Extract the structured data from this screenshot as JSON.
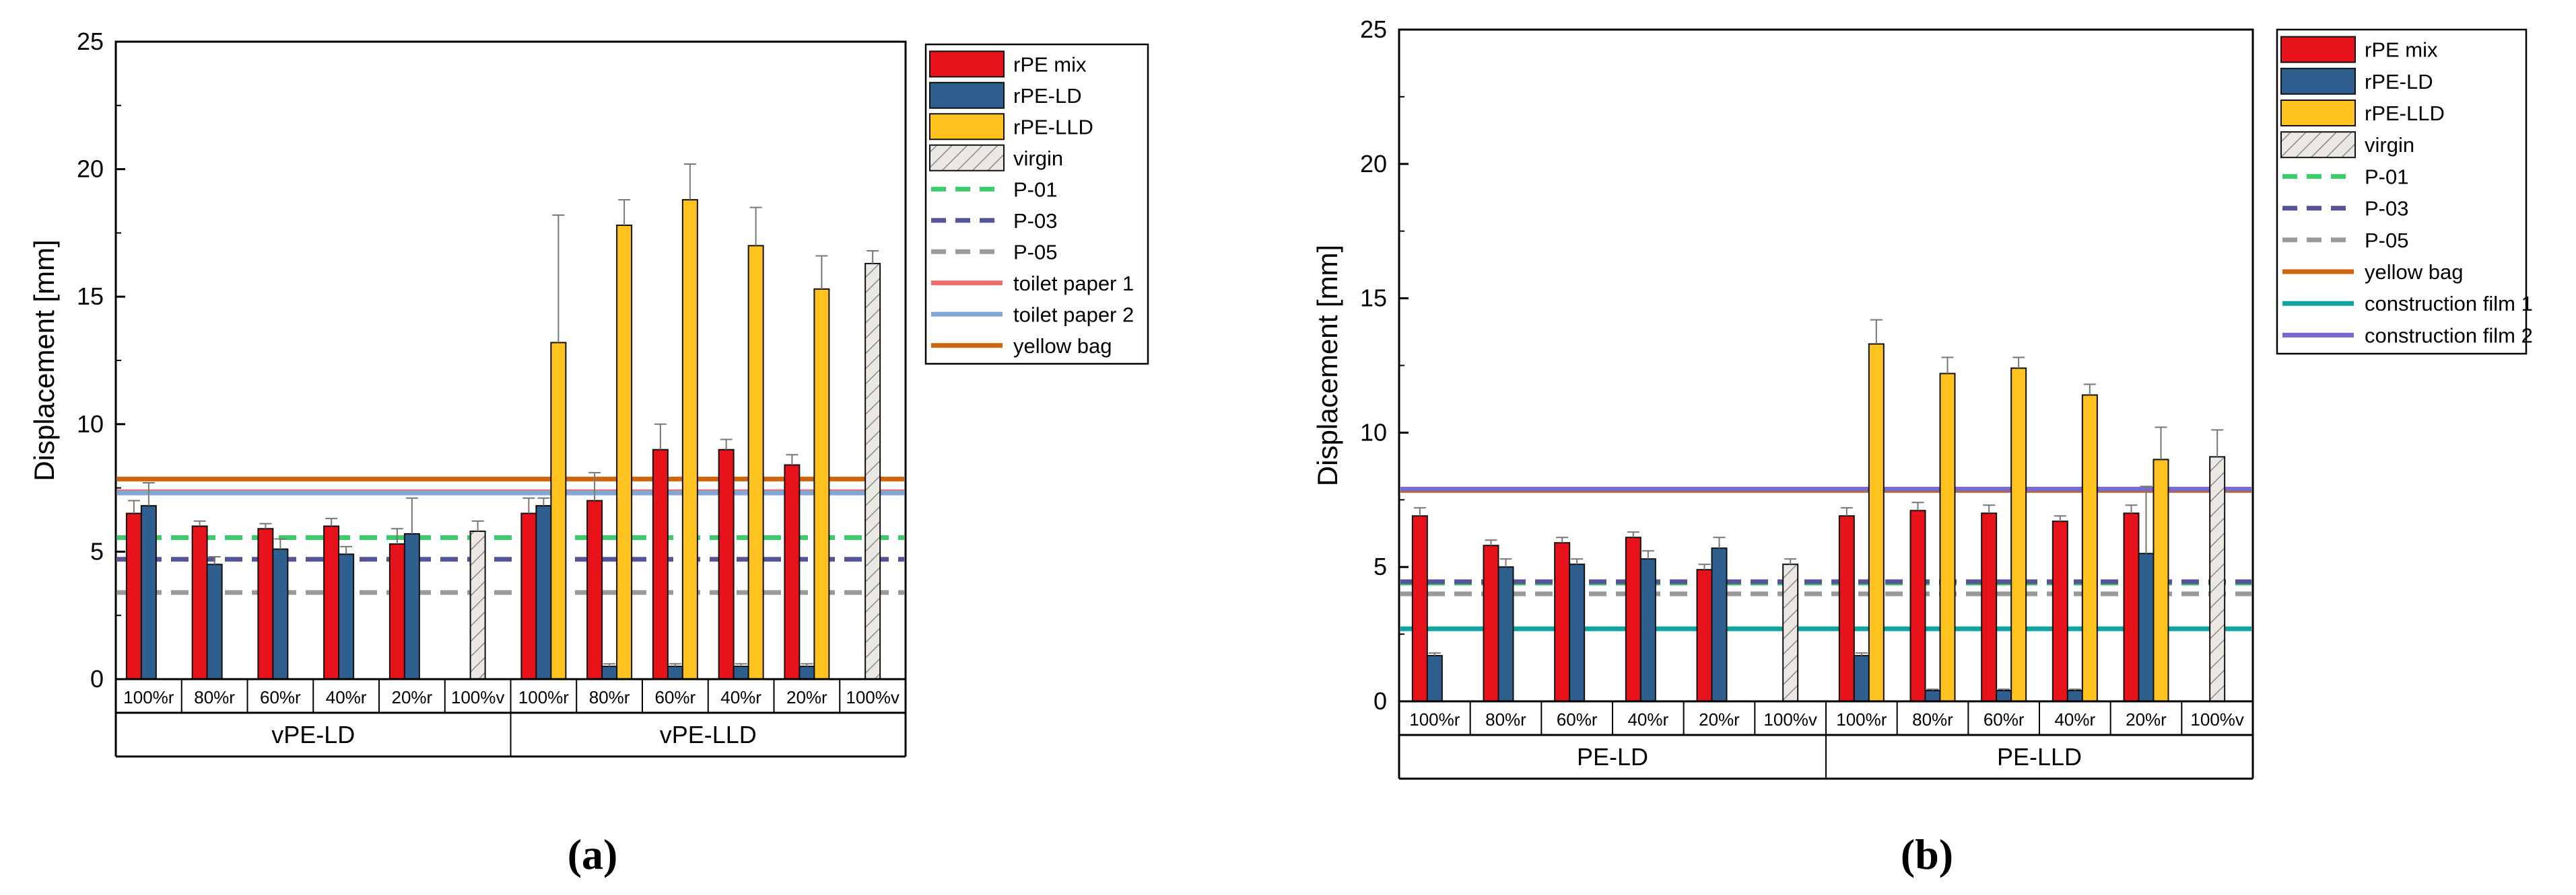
{
  "colors": {
    "rpe_mix": "#e8121a",
    "rpe_ld": "#2f5f8f",
    "rpe_lld": "#ffc21e",
    "virgin": "#e9e5e1",
    "p01": "#3ccc6a",
    "p03": "#55559a",
    "p05": "#9a9a9a",
    "toilet1": "#f06b6b",
    "toilet2": "#7fa8d8",
    "yellow_bag": "#d0650f",
    "construction1": "#10a5a0",
    "construction2": "#7a6ad0"
  },
  "chart_data": [
    {
      "type": "bar",
      "panel_label": "(a)",
      "ylabel": "Displacement [mm]",
      "ylim": [
        0,
        25
      ],
      "yticks": [
        "0",
        "5",
        "10",
        "15",
        "20",
        "25"
      ],
      "groups": [
        {
          "label": "vPE-LD",
          "subcategories": [
            "100%r",
            "80%r",
            "60%r",
            "40%r",
            "20%r",
            "100%v"
          ]
        },
        {
          "label": "vPE-LLD",
          "subcategories": [
            "100%r",
            "80%r",
            "60%r",
            "40%r",
            "20%r",
            "100%v"
          ]
        }
      ],
      "series": [
        {
          "name": "rPE mix",
          "color_key": "rpe_mix",
          "values": [
            6.5,
            6.0,
            5.9,
            6.0,
            5.3,
            null,
            6.5,
            7.0,
            9.0,
            9.0,
            8.4,
            null
          ],
          "errors": [
            0.5,
            0.2,
            0.2,
            0.3,
            0.6,
            null,
            0.6,
            1.1,
            1.0,
            0.4,
            0.4,
            null
          ]
        },
        {
          "name": "rPE-LD",
          "color_key": "rpe_ld",
          "values": [
            6.8,
            4.5,
            5.1,
            4.9,
            5.7,
            null,
            6.8,
            0.5,
            0.5,
            0.5,
            0.5,
            null
          ],
          "errors": [
            0.9,
            0.3,
            0.4,
            0.3,
            1.4,
            null,
            0.3,
            0.1,
            0.1,
            0.1,
            0.1,
            null
          ]
        },
        {
          "name": "rPE-LLD",
          "color_key": "rpe_lld",
          "values": [
            null,
            null,
            null,
            null,
            null,
            null,
            13.2,
            17.8,
            18.8,
            17.0,
            15.3,
            null
          ],
          "errors": [
            null,
            null,
            null,
            null,
            null,
            null,
            5.0,
            1.0,
            1.4,
            1.5,
            1.3,
            null
          ]
        },
        {
          "name": "virgin",
          "color_key": "virgin",
          "hatched": true,
          "values": [
            null,
            null,
            null,
            null,
            null,
            5.8,
            null,
            null,
            null,
            null,
            null,
            16.3
          ],
          "errors": [
            null,
            null,
            null,
            null,
            null,
            0.4,
            null,
            null,
            null,
            null,
            null,
            0.5
          ]
        }
      ],
      "reference_lines": [
        {
          "name": "P-01",
          "value": 5.55,
          "style": "dashed",
          "color_key": "p01"
        },
        {
          "name": "P-03",
          "value": 4.7,
          "style": "dashed",
          "color_key": "p03"
        },
        {
          "name": "P-05",
          "value": 3.4,
          "style": "dashed",
          "color_key": "p05"
        },
        {
          "name": "toilet paper 1",
          "value": 7.35,
          "style": "solid",
          "color_key": "toilet1"
        },
        {
          "name": "toilet paper 2",
          "value": 7.3,
          "style": "solid",
          "color_key": "toilet2"
        },
        {
          "name": "yellow bag",
          "value": 7.85,
          "style": "solid",
          "color_key": "yellow_bag"
        }
      ],
      "legend_position": "top-right"
    },
    {
      "type": "bar",
      "panel_label": "(b)",
      "ylabel": "Displacement [mm]",
      "ylim": [
        0,
        25
      ],
      "yticks": [
        "0",
        "5",
        "10",
        "15",
        "20",
        "25"
      ],
      "groups": [
        {
          "label": "PE-LD",
          "subcategories": [
            "100%r",
            "80%r",
            "60%r",
            "40%r",
            "20%r",
            "100%v"
          ]
        },
        {
          "label": "PE-LLD",
          "subcategories": [
            "100%r",
            "80%r",
            "60%r",
            "40%r",
            "20%r",
            "100%v"
          ]
        }
      ],
      "series": [
        {
          "name": "rPE mix",
          "color_key": "rpe_mix",
          "values": [
            6.9,
            5.8,
            5.9,
            6.1,
            4.9,
            null,
            6.9,
            7.1,
            7.0,
            6.7,
            7.0,
            null
          ],
          "errors": [
            0.3,
            0.2,
            0.2,
            0.2,
            0.2,
            null,
            0.3,
            0.3,
            0.3,
            0.2,
            0.3,
            null
          ]
        },
        {
          "name": "rPE-LD",
          "color_key": "rpe_ld",
          "values": [
            1.7,
            5.0,
            5.1,
            5.3,
            5.7,
            null,
            1.7,
            0.4,
            0.4,
            0.4,
            5.5,
            null
          ],
          "errors": [
            0.1,
            0.3,
            0.2,
            0.3,
            0.4,
            null,
            0.1,
            0.05,
            0.05,
            0.05,
            2.5,
            null
          ]
        },
        {
          "name": "rPE-LLD",
          "color_key": "rpe_lld",
          "values": [
            null,
            null,
            null,
            null,
            null,
            null,
            13.3,
            12.2,
            12.4,
            11.4,
            9.0,
            null
          ],
          "errors": [
            null,
            null,
            null,
            null,
            null,
            null,
            0.9,
            0.6,
            0.4,
            0.4,
            1.2,
            null
          ]
        },
        {
          "name": "virgin",
          "color_key": "virgin",
          "hatched": true,
          "values": [
            null,
            null,
            null,
            null,
            null,
            5.1,
            null,
            null,
            null,
            null,
            null,
            9.1
          ],
          "errors": [
            null,
            null,
            null,
            null,
            null,
            0.2,
            null,
            null,
            null,
            null,
            null,
            1.0
          ]
        }
      ],
      "reference_lines": [
        {
          "name": "P-01",
          "value": 4.4,
          "style": "dashed",
          "color_key": "p01"
        },
        {
          "name": "P-03",
          "value": 4.45,
          "style": "dashed",
          "color_key": "p03"
        },
        {
          "name": "P-05",
          "value": 4.0,
          "style": "dashed",
          "color_key": "p05"
        },
        {
          "name": "yellow bag",
          "value": 7.85,
          "style": "solid",
          "color_key": "yellow_bag"
        },
        {
          "name": "construction film 1",
          "value": 2.7,
          "style": "solid",
          "color_key": "construction1"
        },
        {
          "name": "construction film 2",
          "value": 7.9,
          "style": "solid",
          "color_key": "construction2"
        }
      ],
      "legend_position": "top-right"
    }
  ]
}
